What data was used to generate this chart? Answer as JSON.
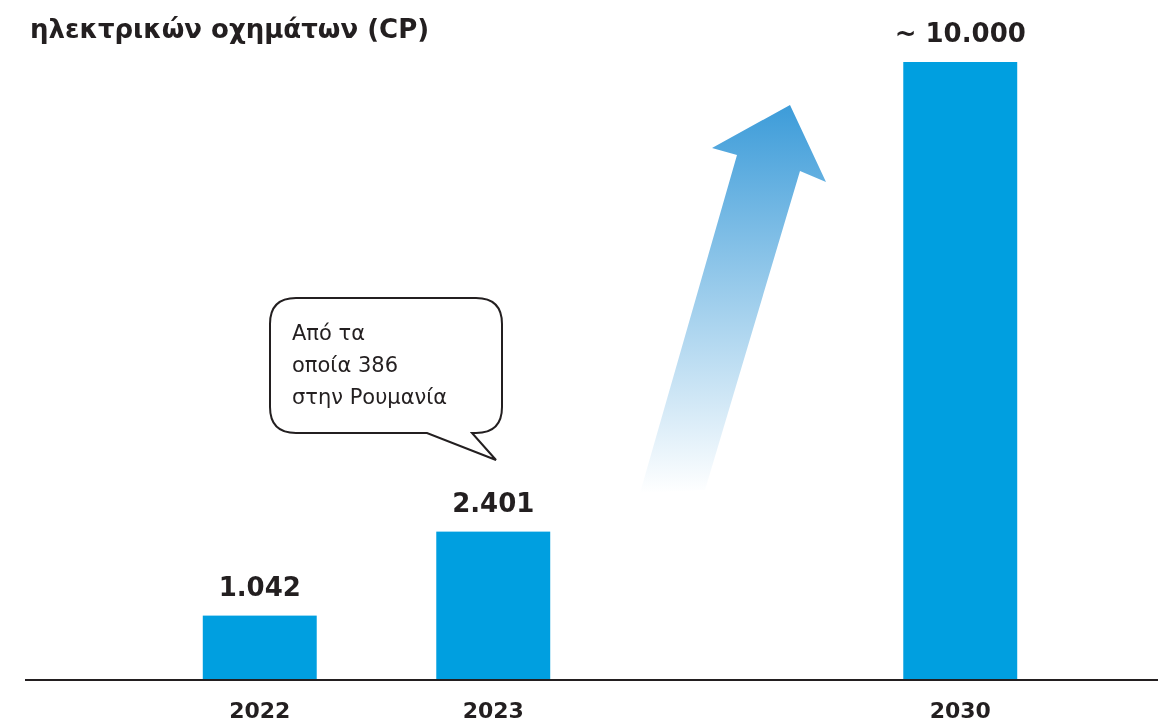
{
  "chart_data": {
    "type": "bar",
    "title": "ηλεκτρικών οχημάτων (CP)",
    "categories": [
      "2022",
      "2023",
      null,
      "2030"
    ],
    "values": [
      1042,
      2401,
      null,
      10000
    ],
    "value_labels": [
      "1.042",
      "2.401",
      null,
      "~ 10.000"
    ],
    "color": "#009fe0",
    "annotations": [
      "Από τα\nοποία 386\nστην Ρουμανία"
    ]
  }
}
